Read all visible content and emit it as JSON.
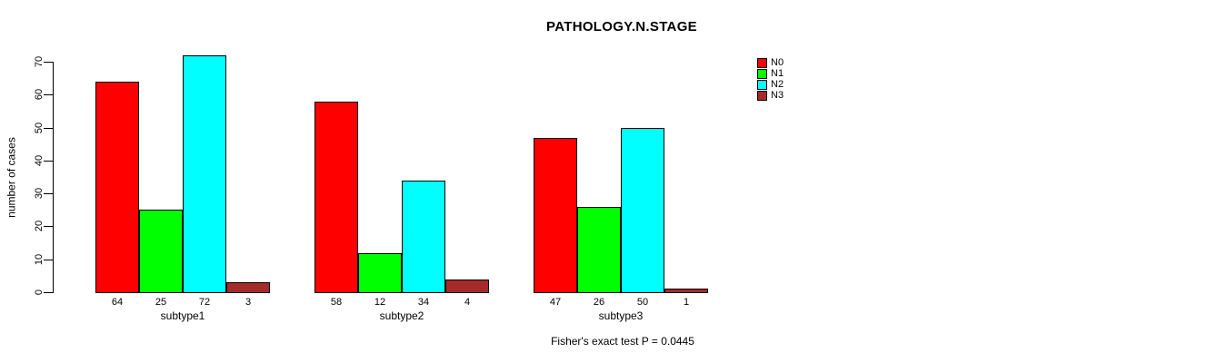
{
  "chart_data": {
    "type": "bar",
    "title": "PATHOLOGY.N.STAGE",
    "ylabel": "number of cases",
    "xlabel": "",
    "categories": [
      "subtype1",
      "subtype2",
      "subtype3"
    ],
    "series": [
      {
        "name": "N0",
        "color": "#ff0000",
        "values": [
          64,
          58,
          47
        ]
      },
      {
        "name": "N1",
        "color": "#00ff00",
        "values": [
          25,
          12,
          26
        ]
      },
      {
        "name": "N2",
        "color": "#00ffff",
        "values": [
          72,
          34,
          50
        ]
      },
      {
        "name": "N3",
        "color": "#a52a2a",
        "values": [
          3,
          4,
          1
        ]
      }
    ],
    "ylim": [
      0,
      70
    ],
    "ytick_step": 10,
    "yticks": [
      0,
      10,
      20,
      30,
      40,
      50,
      60,
      70
    ],
    "bar_value_labels": true,
    "grid": false,
    "legend_position": "top-right",
    "annotation": "Fisher's exact test P = 0.0445"
  }
}
